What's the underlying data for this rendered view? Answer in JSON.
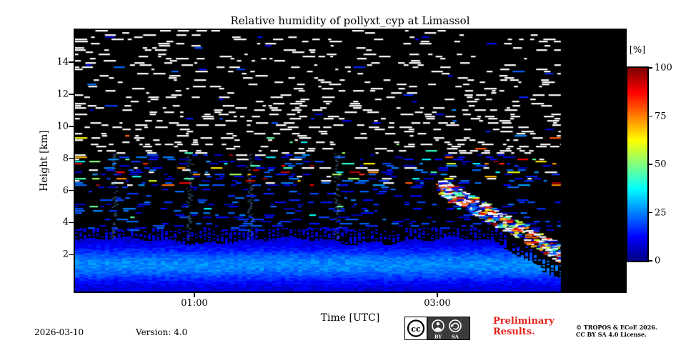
{
  "title": "Relative humidity of pollyxt_cyp at Limassol",
  "axes": {
    "x_label": "Time [UTC]",
    "y_label": "Height [km]"
  },
  "colorbar": {
    "label": "[%]"
  },
  "footer": {
    "date": "2026-03-10",
    "version": "Version: 4.0",
    "preliminary_line1": "Preliminary",
    "preliminary_line2": "Results.",
    "preliminary_color": "#e2231a",
    "copyright_line1": "© TROPOS & ECoE 2026.",
    "copyright_line2": "CC BY SA 4.0 License.",
    "badge": {
      "cc_label": "cc",
      "by_label": "BY",
      "sa_label": "SA"
    }
  },
  "chart_data": {
    "type": "heatmap",
    "title": "Relative humidity of pollyxt_cyp at Limassol",
    "xlabel": "Time [UTC]",
    "ylabel": "Height [km]",
    "colorbar_label": "[%]",
    "colormap": "jet",
    "value_unit": "%",
    "vlim": [
      0,
      100
    ],
    "colorbar_ticks": [
      0,
      25,
      50,
      75,
      100
    ],
    "x_ticks": [
      "01:00",
      "03:00"
    ],
    "x_tick_minutes": [
      60,
      180
    ],
    "x_range_minutes": [
      1,
      273
    ],
    "data_end_minute": 241,
    "y_ticks": [
      2,
      4,
      6,
      8,
      10,
      12,
      14
    ],
    "ylim_km": [
      -0.3,
      16
    ],
    "grid": false,
    "legend_position": "colorbar right",
    "background_no_signal": "#000000",
    "no_signal_speckle": "#ffffff",
    "layers": [
      {
        "height_km": [
          0,
          3.0
        ],
        "rh_percent": [
          5,
          30
        ],
        "note": "continuous moist layer, brighter cyan band near 1-2 km, tapers down after 03:40"
      },
      {
        "height_km": [
          3.0,
          6.3
        ],
        "rh_percent": [
          5,
          30
        ],
        "note": "sparse blue speckles on black"
      },
      {
        "height_km": [
          6.3,
          8.3
        ],
        "rh_percent": [
          20,
          100
        ],
        "note": "speckled layer with enhanced RH (green/yellow/orange/red specks)"
      },
      {
        "height_km": [
          8.3,
          16
        ],
        "rh_percent": null,
        "note": "white no-signal speckles on black, density decreasing with height"
      }
    ],
    "features": {
      "vertical_streak_minutes": [
        20,
        57,
        87,
        130
      ],
      "vertical_streak_times_utc": [
        "00:20",
        "00:57",
        "01:27",
        "02:10"
      ],
      "descending_layer": {
        "from_minute": 179,
        "to_minute": 240,
        "from": {
          "time_utc": "02:59",
          "height_km": 6.4
        },
        "to": {
          "time_utc": "04:00",
          "height_km": 2.1
        }
      },
      "no_data_after_utc": "04:01 (solid black to right edge of axes)"
    }
  }
}
